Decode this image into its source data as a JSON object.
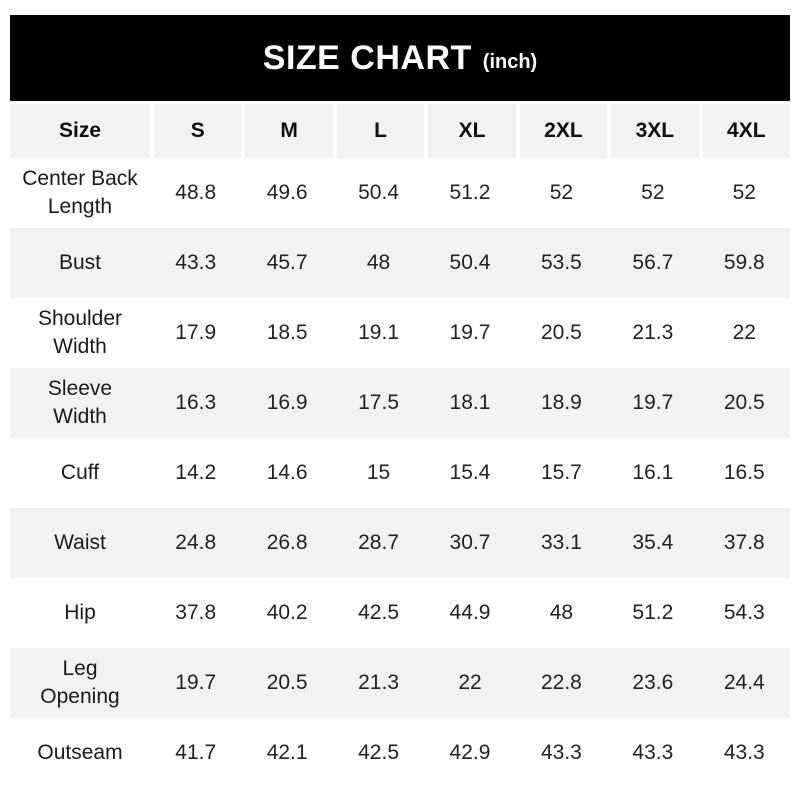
{
  "banner": {
    "title": "SIZE CHART",
    "unit_label": "(inch)"
  },
  "chart_data": {
    "type": "table",
    "title": "SIZE CHART (inch)",
    "unit": "inch",
    "columns": [
      "Size",
      "S",
      "M",
      "L",
      "XL",
      "2XL",
      "3XL",
      "4XL"
    ],
    "rows": [
      {
        "label": "Center Back Length",
        "values": [
          "48.8",
          "49.6",
          "50.4",
          "51.2",
          "52",
          "52",
          "52"
        ]
      },
      {
        "label": "Bust",
        "values": [
          "43.3",
          "45.7",
          "48",
          "50.4",
          "53.5",
          "56.7",
          "59.8"
        ]
      },
      {
        "label": "Shoulder Width",
        "values": [
          "17.9",
          "18.5",
          "19.1",
          "19.7",
          "20.5",
          "21.3",
          "22"
        ]
      },
      {
        "label": "Sleeve Width",
        "values": [
          "16.3",
          "16.9",
          "17.5",
          "18.1",
          "18.9",
          "19.7",
          "20.5"
        ]
      },
      {
        "label": "Cuff",
        "values": [
          "14.2",
          "14.6",
          "15",
          "15.4",
          "15.7",
          "16.1",
          "16.5"
        ]
      },
      {
        "label": "Waist",
        "values": [
          "24.8",
          "26.8",
          "28.7",
          "30.7",
          "33.1",
          "35.4",
          "37.8"
        ]
      },
      {
        "label": "Hip",
        "values": [
          "37.8",
          "40.2",
          "42.5",
          "44.9",
          "48",
          "51.2",
          "54.3"
        ]
      },
      {
        "label": "Leg Opening",
        "values": [
          "19.7",
          "20.5",
          "21.3",
          "22",
          "22.8",
          "23.6",
          "24.4"
        ]
      },
      {
        "label": "Outseam",
        "values": [
          "41.7",
          "42.1",
          "42.5",
          "42.9",
          "43.3",
          "43.3",
          "43.3"
        ]
      }
    ],
    "layout": {
      "legend": "none",
      "grid": "off",
      "alternating_rows": true
    }
  },
  "colors": {
    "banner_bg": "#000000",
    "banner_text": "#ffffff",
    "alt_row_bg": "#f2f2f2",
    "row_bg": "#ffffff",
    "text": "#1a1a1a",
    "separator": "#ffffff"
  }
}
